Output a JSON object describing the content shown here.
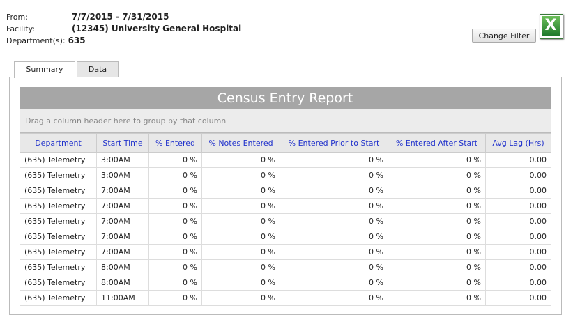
{
  "filter": {
    "from_label": "From:",
    "from_value": "7/7/2015 - 7/31/2015",
    "facility_label": "Facility:",
    "facility_value": "(12345) University General Hospital",
    "department_label": "Department(s):",
    "department_value": "635"
  },
  "change_filter_label": "Change Filter",
  "excel_icon_glyph": "X",
  "tabs": [
    "Summary",
    "Data"
  ],
  "report": {
    "title": "Census Entry Report",
    "group_hint": "Drag a column header here to group by that column",
    "columns": [
      "Department",
      "Start Time",
      "% Entered",
      "% Notes Entered",
      "% Entered Prior to Start",
      "% Entered After Start",
      "Avg Lag (Hrs)"
    ],
    "rows": [
      [
        "(635) Telemetry",
        "3:00AM",
        "0 %",
        "0 %",
        "0 %",
        "0 %",
        "0.00"
      ],
      [
        "(635) Telemetry",
        "3:00AM",
        "0 %",
        "0 %",
        "0 %",
        "0 %",
        "0.00"
      ],
      [
        "(635) Telemetry",
        "7:00AM",
        "0 %",
        "0 %",
        "0 %",
        "0 %",
        "0.00"
      ],
      [
        "(635) Telemetry",
        "7:00AM",
        "0 %",
        "0 %",
        "0 %",
        "0 %",
        "0.00"
      ],
      [
        "(635) Telemetry",
        "7:00AM",
        "0 %",
        "0 %",
        "0 %",
        "0 %",
        "0.00"
      ],
      [
        "(635) Telemetry",
        "7:00AM",
        "0 %",
        "0 %",
        "0 %",
        "0 %",
        "0.00"
      ],
      [
        "(635) Telemetry",
        "7:00AM",
        "0 %",
        "0 %",
        "0 %",
        "0 %",
        "0.00"
      ],
      [
        "(635) Telemetry",
        "8:00AM",
        "0 %",
        "0 %",
        "0 %",
        "0 %",
        "0.00"
      ],
      [
        "(635) Telemetry",
        "8:00AM",
        "0 %",
        "0 %",
        "0 %",
        "0 %",
        "0.00"
      ],
      [
        "(635) Telemetry",
        "11:00AM",
        "0 %",
        "0 %",
        "0 %",
        "0 %",
        "0.00"
      ]
    ]
  }
}
